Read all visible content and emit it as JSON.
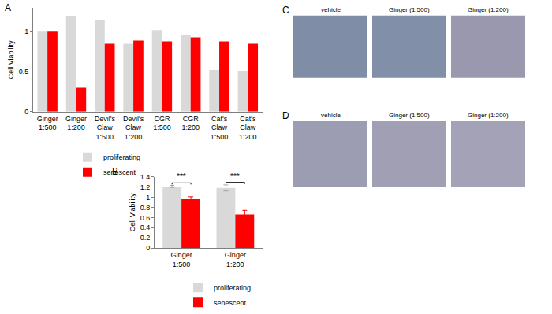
{
  "chart_data": [
    {
      "type": "bar",
      "categories": [
        "Ginger 1:500",
        "Ginger 1:200",
        "Devil's Claw 1:500",
        "Devil's Claw 1:200",
        "CGR 1:500",
        "CGR 1:200",
        "Cat's Claw 1:500",
        "Cat's Claw 1:200"
      ],
      "series": [
        {
          "name": "proliferating",
          "color": "#d9d9d9",
          "values": [
            1.0,
            1.2,
            1.15,
            0.85,
            1.02,
            0.96,
            0.52,
            0.51
          ]
        },
        {
          "name": "senescent",
          "color": "#ff0000",
          "values": [
            1.0,
            0.3,
            0.85,
            0.89,
            0.88,
            0.93,
            0.88,
            0.85
          ]
        }
      ],
      "ylabel": "Cell Viability",
      "ylim": [
        0,
        1.3
      ],
      "yticks": [
        0,
        0.5,
        1
      ],
      "grid": false,
      "legend": "bottom"
    },
    {
      "type": "bar",
      "categories": [
        "Ginger 1:500",
        "Ginger 1:200"
      ],
      "series": [
        {
          "name": "proliferating",
          "color": "#d9d9d9",
          "values": [
            1.21,
            1.18
          ],
          "errors": [
            0.02,
            0.06
          ]
        },
        {
          "name": "senescent",
          "color": "#ff0000",
          "values": [
            0.96,
            0.66
          ],
          "errors": [
            0.05,
            0.08
          ]
        }
      ],
      "ylabel": "Cell Viability",
      "ylim": [
        0,
        1.4
      ],
      "yticks": [
        0,
        0.2,
        0.4,
        0.6,
        0.8,
        1,
        1.2,
        1.4
      ],
      "grid": false,
      "legend": "bottom",
      "annotations": [
        {
          "category": "Ginger 1:500",
          "text": "***"
        },
        {
          "category": "Ginger 1:200",
          "text": "***"
        }
      ]
    }
  ],
  "panel_labels": [
    "A",
    "B",
    "C",
    "D"
  ],
  "image_panels": [
    {
      "captions": [
        "vehicle",
        "Ginger (1:500)",
        "Ginger (1:200)"
      ]
    },
    {
      "captions": [
        "vehicle",
        "Ginger (1:500)",
        "Ginger (1:200)"
      ]
    }
  ]
}
